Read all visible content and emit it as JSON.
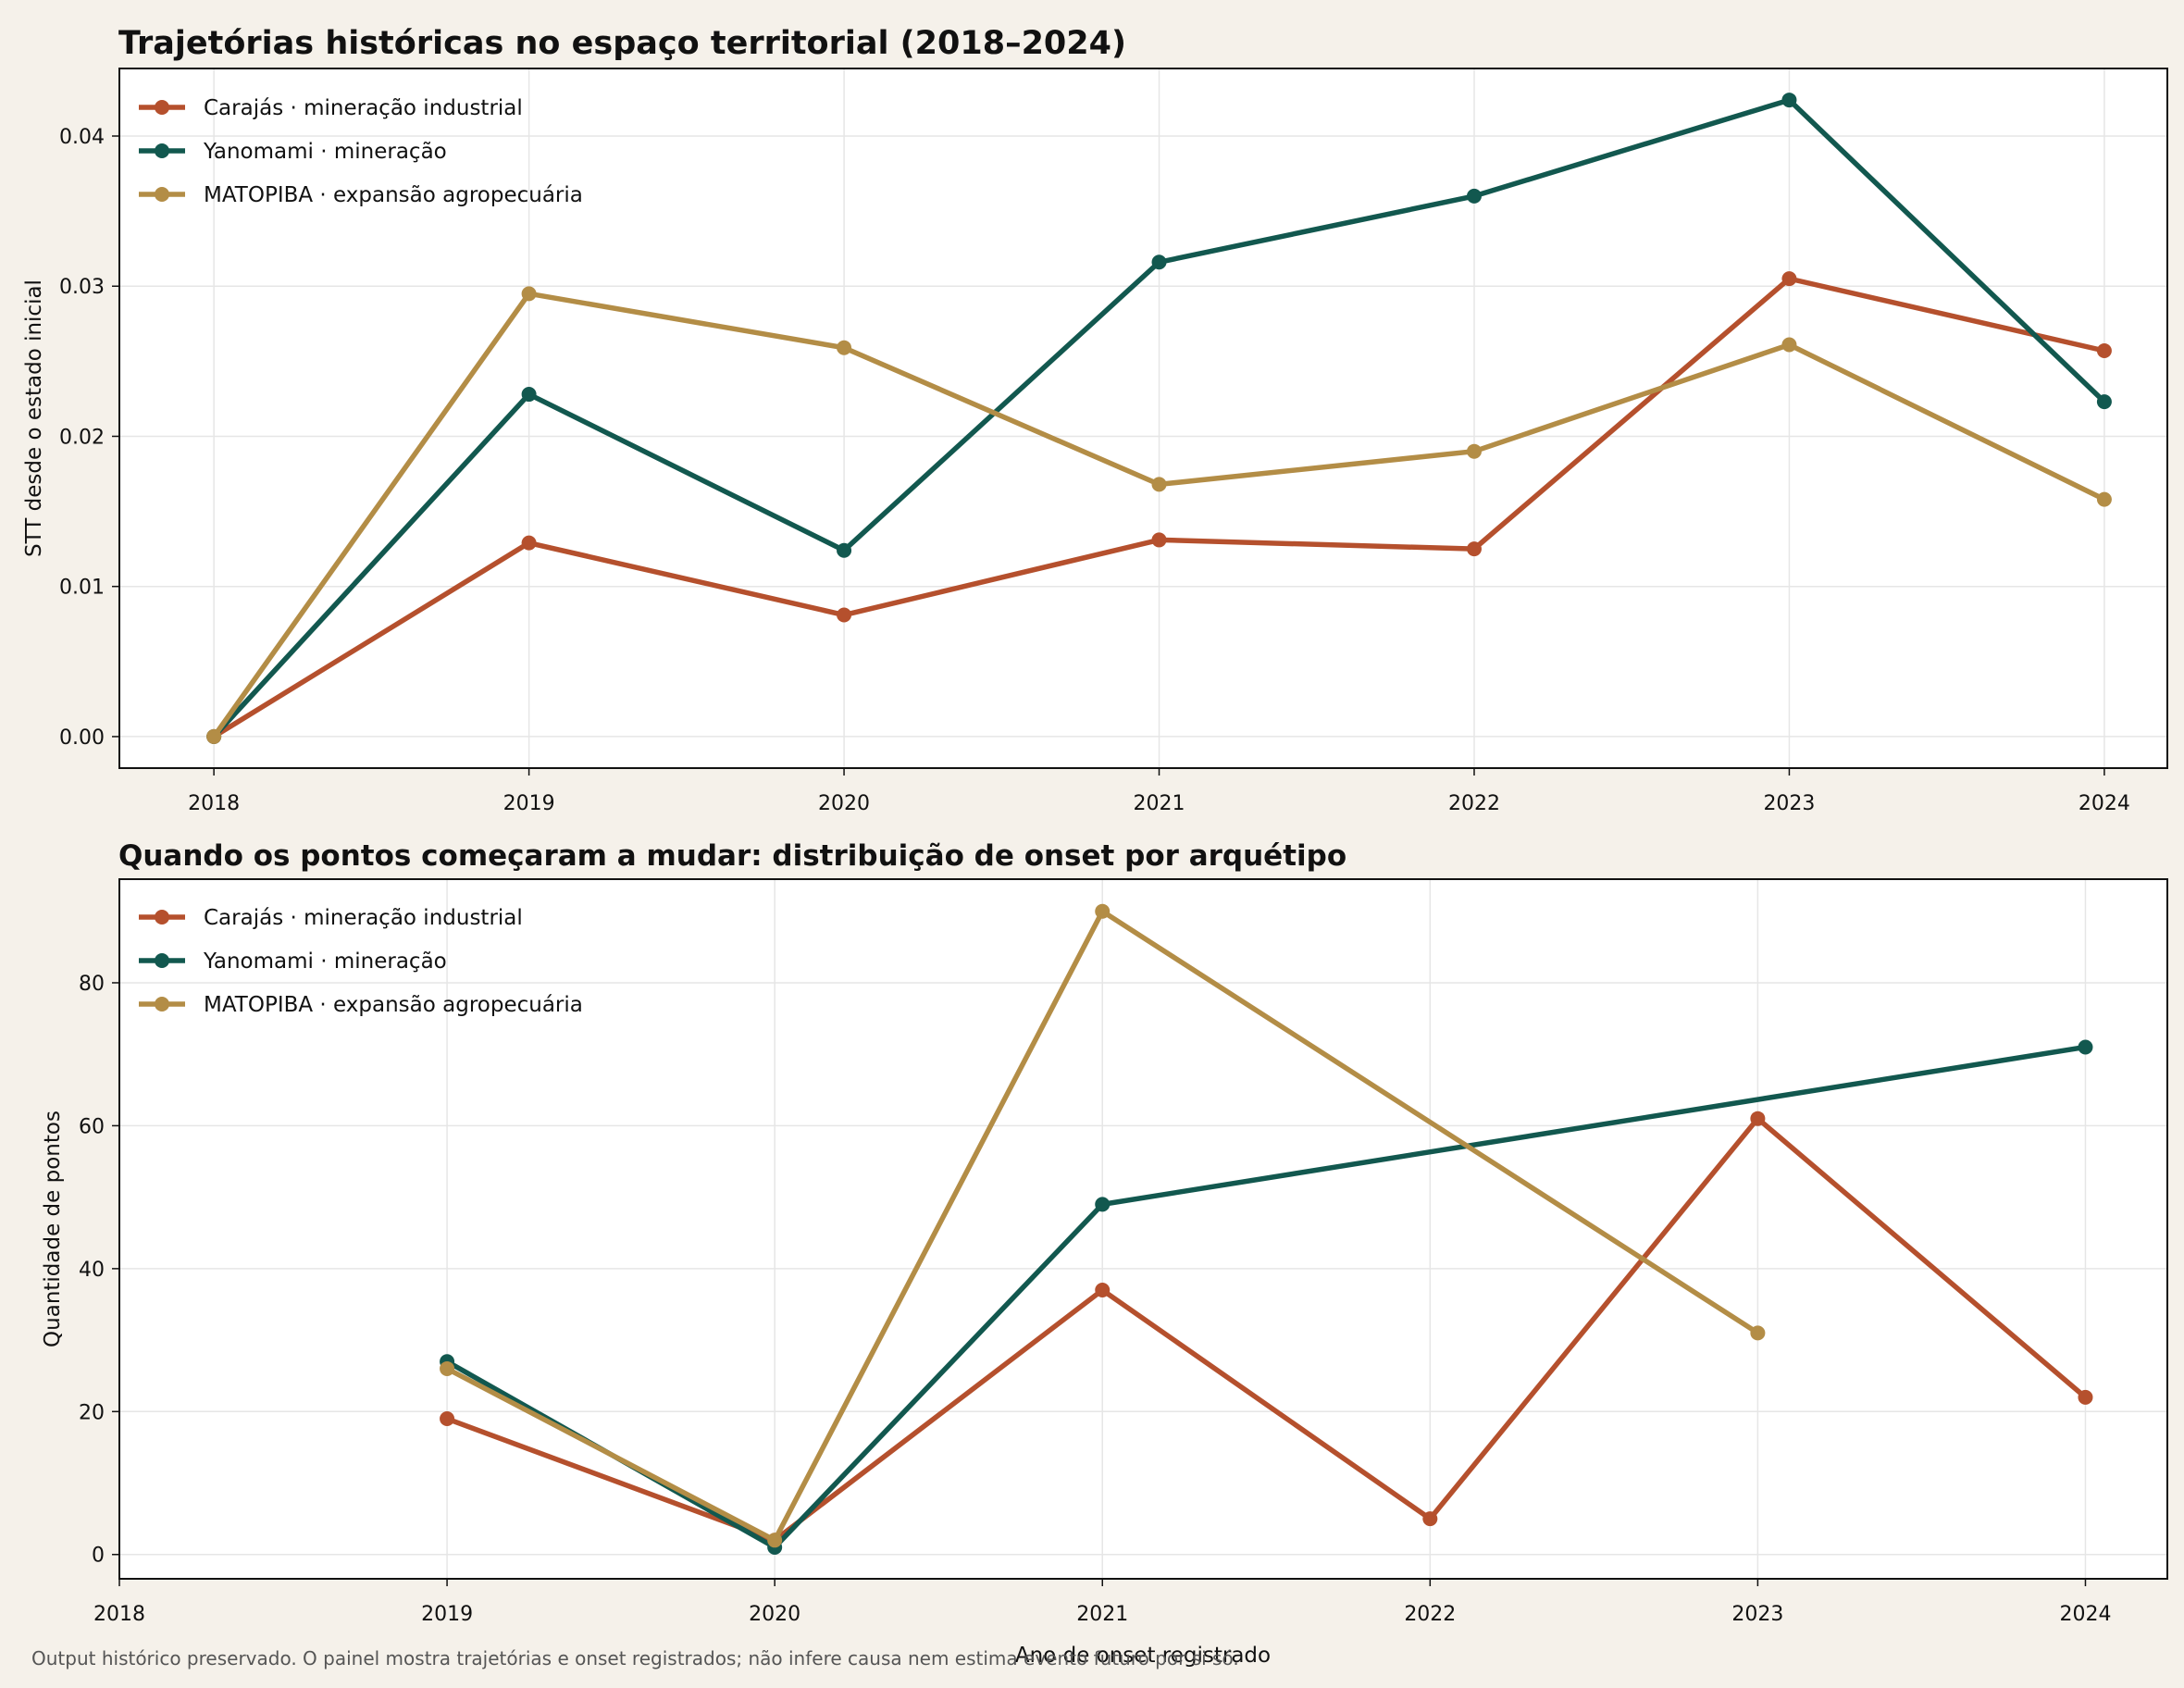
{
  "chart_data": [
    {
      "type": "line",
      "title": "Trajetórias históricas no espaço territorial (2018–2024)",
      "xlabel": "",
      "ylabel": "STT desde o estado inicial",
      "x": [
        2018,
        2019,
        2020,
        2021,
        2022,
        2023,
        2024
      ],
      "xticks": [
        "2018",
        "2019",
        "2020",
        "2021",
        "2022",
        "2023",
        "2024"
      ],
      "xlim": [
        2017.7,
        2024.2
      ],
      "ylim": [
        -0.0021,
        0.0445
      ],
      "yticks": [
        "0.00",
        "0.01",
        "0.02",
        "0.03",
        "0.04"
      ],
      "ytick_values": [
        0,
        0.01,
        0.02,
        0.03,
        0.04
      ],
      "grid": true,
      "legend": "top-left",
      "series": [
        {
          "name": "Carajás · mineração industrial",
          "color": "#b5502d",
          "values": [
            0.0,
            0.0129,
            0.0081,
            0.0131,
            0.0125,
            0.0305,
            0.0257
          ]
        },
        {
          "name": "Yanomami · mineração",
          "color": "#12584f",
          "values": [
            0.0,
            0.0228,
            0.0124,
            0.0316,
            0.036,
            0.0424,
            0.0223
          ]
        },
        {
          "name": "MATOPIBA · expansão agropecuária",
          "color": "#b38d46",
          "values": [
            0.0,
            0.0295,
            0.0259,
            0.0168,
            0.019,
            0.0261,
            0.0158
          ]
        }
      ]
    },
    {
      "type": "line",
      "title": "Quando os pontos começaram a mudar: distribuição de onset por arquétipo",
      "xlabel": "Ano de onset registrado",
      "ylabel": "Quantidade de pontos",
      "xticks": [
        "2018",
        "2019",
        "2020",
        "2021",
        "2022",
        "2023",
        "2024"
      ],
      "xtick_values": [
        2018,
        2019,
        2020,
        2021,
        2022,
        2023,
        2024
      ],
      "xlim": [
        2018,
        2024.25
      ],
      "ylim": [
        -3.4,
        94.5
      ],
      "yticks": [
        "0",
        "20",
        "40",
        "60",
        "80"
      ],
      "ytick_values": [
        0,
        20,
        40,
        60,
        80
      ],
      "grid": true,
      "legend": "top-left",
      "series": [
        {
          "name": "Carajás · mineração industrial",
          "color": "#b5502d",
          "x": [
            2019,
            2020,
            2021,
            2022,
            2023,
            2024
          ],
          "values": [
            19,
            2,
            37,
            5,
            61,
            22
          ]
        },
        {
          "name": "Yanomami · mineração",
          "color": "#12584f",
          "x": [
            2019,
            2020,
            2021,
            2024
          ],
          "values": [
            27,
            1,
            49,
            71
          ]
        },
        {
          "name": "MATOPIBA · expansão agropecuária",
          "color": "#b38d46",
          "x": [
            2019,
            2020,
            2021,
            2023
          ],
          "values": [
            26,
            2,
            90,
            31
          ]
        }
      ]
    }
  ],
  "footer": {
    "note": "Output histórico preservado. O painel mostra trajetórias e onset registrados; não infere causa nem estima evento futuro por si só."
  }
}
